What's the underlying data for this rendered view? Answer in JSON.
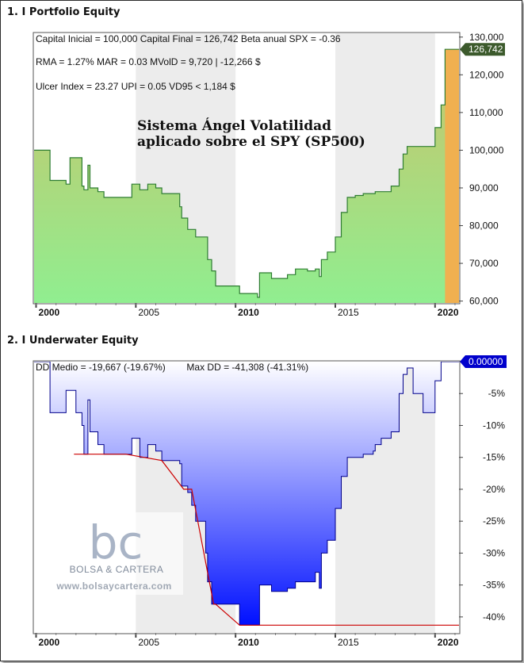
{
  "panel1": {
    "title": "1. I Portfolio Equity",
    "stats": [
      "Capital Inicial = 100,000  Capital Final = 126,742  Beta anual SPX = -0.36",
      "RMA = 1.27%   MAR = 0.03   MVolD = 9,720 | -12,266 $",
      "Ulcer Index = 23.27   UPI = 0.05   VD95 < 1,184 $"
    ],
    "annotation": [
      "Sistema Ángel Volatilidad",
      "aplicado sobre el SPY (SP500)"
    ],
    "last_value_label": "126,742"
  },
  "panel2": {
    "title": "2. I Underwater Equity",
    "stats": "DD Medio = -19,667 (-19.67%)        Max DD = -41,308 (-41.31%)",
    "last_value_label": "0.00000"
  },
  "watermark": {
    "logo": "bc",
    "name": "BOLSA & CARTERA",
    "url": "www.bolsaycartera.com"
  },
  "colors": {
    "equity_fill_top": "#c9c36a",
    "equity_fill_bottom": "#90ee90",
    "equity_line": "#2e7d32",
    "equity_last_fill": "#f0b050",
    "underwater_fill_top": "#ffffff",
    "underwater_fill_bottom": "#0010ff",
    "underwater_line": "#00008b",
    "maxdd_line": "#cc0000",
    "label_equity": "#3c5a2c",
    "label_underwater": "#0000cc"
  },
  "chart_data": [
    {
      "type": "area",
      "title": "1. I Portfolio Equity",
      "x_ticks": [
        "2000",
        "2005",
        "2010",
        "2015",
        "2020"
      ],
      "y_ticks": [
        "130,000",
        "120,000",
        "110,000",
        "100,000",
        "90,000",
        "80,000",
        "70,000",
        "60,000"
      ],
      "xlim": [
        1999.9,
        2021.2
      ],
      "ylim": [
        59500,
        131000
      ],
      "series": [
        {
          "x": [
            1999.9,
            2000.6,
            2000.7,
            2001.0,
            2001.5,
            2001.7,
            2002.0,
            2002.3,
            2002.4,
            2002.6,
            2002.7,
            2003.1,
            2003.4,
            2004.5,
            2004.8,
            2005.2,
            2005.6,
            2006.0,
            2006.3,
            2007.2,
            2007.3,
            2007.6,
            2007.8,
            2008.0,
            2008.5,
            2008.6,
            2008.8,
            2009.0,
            2009.4,
            2009.6,
            2010.0,
            2010.2,
            2011.0,
            2011.1,
            2011.2,
            2011.6,
            2011.8,
            2012.4,
            2012.6,
            2013.0,
            2013.4,
            2013.6,
            2014.0,
            2014.2,
            2014.3,
            2014.6,
            2015.0,
            2015.3,
            2015.6,
            2016.0,
            2016.4,
            2016.9,
            2017.0,
            2017.3,
            2017.8,
            2018.2,
            2018.4,
            2018.6,
            2018.9,
            2019.4,
            2019.6,
            2020.0,
            2020.3,
            2020.5,
            2020.7,
            2021.2
          ],
          "y": [
            100000,
            100000,
            92000,
            92000,
            91000,
            98000,
            98000,
            90500,
            89500,
            96000,
            90000,
            89000,
            87500,
            87500,
            91000,
            89500,
            91000,
            90000,
            88500,
            85000,
            82000,
            79000,
            79000,
            77000,
            77000,
            71000,
            68000,
            64000,
            64000,
            64000,
            64000,
            62000,
            62000,
            61000,
            67500,
            67500,
            66000,
            66000,
            67000,
            68500,
            68500,
            68000,
            68500,
            66500,
            71000,
            73000,
            77000,
            83500,
            87500,
            88000,
            88500,
            88500,
            89000,
            89000,
            90500,
            95000,
            99000,
            101000,
            101000,
            101000,
            101000,
            106000,
            112000,
            126742,
            126742,
            126742
          ]
        }
      ]
    },
    {
      "type": "area",
      "title": "2. I Underwater Equity",
      "x_ticks": [
        "2000",
        "2005",
        "2010",
        "2015",
        "2020"
      ],
      "y_ticks": [
        "-5%",
        "-10%",
        "-15%",
        "-20%",
        "-25%",
        "-30%",
        "-35%",
        "-40%"
      ],
      "xlim": [
        1999.9,
        2021.2
      ],
      "ylim": [
        -42.5,
        0
      ],
      "series": [
        {
          "name": "Underwater",
          "x": [
            1999.9,
            2000.6,
            2000.7,
            2001.0,
            2001.5,
            2001.7,
            2002.0,
            2002.3,
            2002.4,
            2002.6,
            2002.7,
            2003.1,
            2003.4,
            2004.5,
            2004.8,
            2005.2,
            2005.6,
            2006.0,
            2006.3,
            2007.2,
            2007.3,
            2007.6,
            2007.8,
            2008.0,
            2008.5,
            2008.6,
            2008.8,
            2009.0,
            2009.4,
            2009.6,
            2010.0,
            2010.2,
            2011.0,
            2011.1,
            2011.2,
            2011.6,
            2011.8,
            2012.4,
            2012.6,
            2013.0,
            2013.4,
            2013.6,
            2014.0,
            2014.2,
            2014.3,
            2014.6,
            2015.0,
            2015.3,
            2015.6,
            2016.0,
            2016.4,
            2016.9,
            2017.0,
            2017.3,
            2017.8,
            2018.2,
            2018.4,
            2018.6,
            2018.9,
            2019.4,
            2019.6,
            2020.0,
            2020.3,
            2020.5,
            2020.7,
            2021.2
          ],
          "y": [
            0,
            0,
            -8.0,
            -8.0,
            -4.5,
            -4.5,
            -8.0,
            -10.0,
            -14.5,
            -6.0,
            -11.0,
            -13.0,
            -14.5,
            -14.5,
            -12.0,
            -15.0,
            -13.0,
            -14.0,
            -15.5,
            -16.0,
            -19.5,
            -20.5,
            -22.5,
            -25.0,
            -30.0,
            -34.5,
            -38.0,
            -38.0,
            -38.0,
            -38.0,
            -38.0,
            -41.3,
            -41.3,
            -41.3,
            -35.0,
            -35.0,
            -36.0,
            -36.0,
            -35.5,
            -34.5,
            -34.5,
            -34.5,
            -33.0,
            -35.5,
            -30.0,
            -28.0,
            -23.0,
            -18.0,
            -15.0,
            -15.0,
            -14.5,
            -14.0,
            -13.0,
            -12.0,
            -11.0,
            -5.0,
            -2.0,
            -1.0,
            -5.0,
            -8.0,
            -8.0,
            -3.0,
            0,
            0,
            0,
            0
          ]
        },
        {
          "name": "Max DD",
          "x": [
            2001.9,
            2004.5,
            2006.3,
            2007.4,
            2007.8,
            2008.9,
            2009.0,
            2010.2,
            2010.3,
            2021.2
          ],
          "y": [
            -14.5,
            -14.5,
            -15.5,
            -20.0,
            -20.0,
            -38.0,
            -38.0,
            -41.3,
            -41.3,
            -41.3
          ]
        }
      ]
    }
  ]
}
